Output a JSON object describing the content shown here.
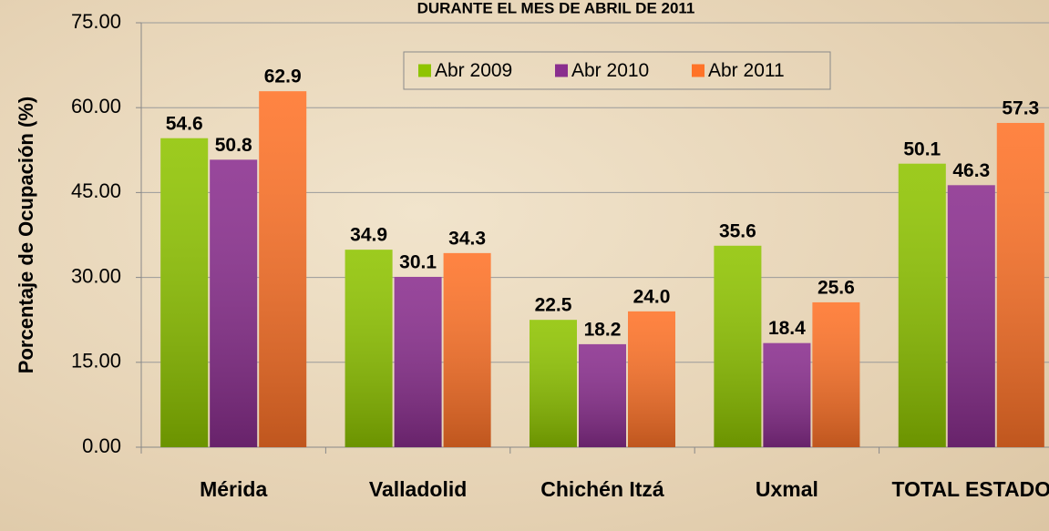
{
  "chart_data": {
    "type": "bar",
    "title": "DURANTE EL MES DE ABRIL DE 2011",
    "y_label": "Porcentaje de Ocupación (%)",
    "categories": [
      "Mérida",
      "Valladolid",
      "Chichén Itzá",
      "Uxmal",
      "TOTAL ESTADO"
    ],
    "series": [
      {
        "name": "Abr 2009",
        "color": "#8fc400",
        "values": [
          54.6,
          34.9,
          22.5,
          35.6,
          50.1
        ],
        "value_labels": [
          "54.6",
          "34.9",
          "22.5",
          "35.6",
          "50.1"
        ]
      },
      {
        "name": "Abr 2010",
        "color": "#8a2e8e",
        "values": [
          50.8,
          30.1,
          18.2,
          18.4,
          46.3
        ],
        "value_labels": [
          "50.8",
          "30.1",
          "18.2",
          "18.4",
          "46.3"
        ]
      },
      {
        "name": "Abr 2011",
        "color": "#ff7328",
        "values": [
          62.9,
          34.3,
          24.0,
          25.6,
          57.3
        ],
        "value_labels": [
          "62.9",
          "34.3",
          "24.0",
          "25.6",
          "57.3"
        ]
      }
    ],
    "ylim": [
      0,
      75
    ],
    "yticks": [
      {
        "value": 0,
        "label": "0.00"
      },
      {
        "value": 15,
        "label": "15.00"
      },
      {
        "value": 30,
        "label": "30.00"
      },
      {
        "value": 45,
        "label": "45.00"
      },
      {
        "value": 60,
        "label": "60.00"
      },
      {
        "value": 75,
        "label": "75.00"
      }
    ],
    "grid": true,
    "legend": "top"
  }
}
